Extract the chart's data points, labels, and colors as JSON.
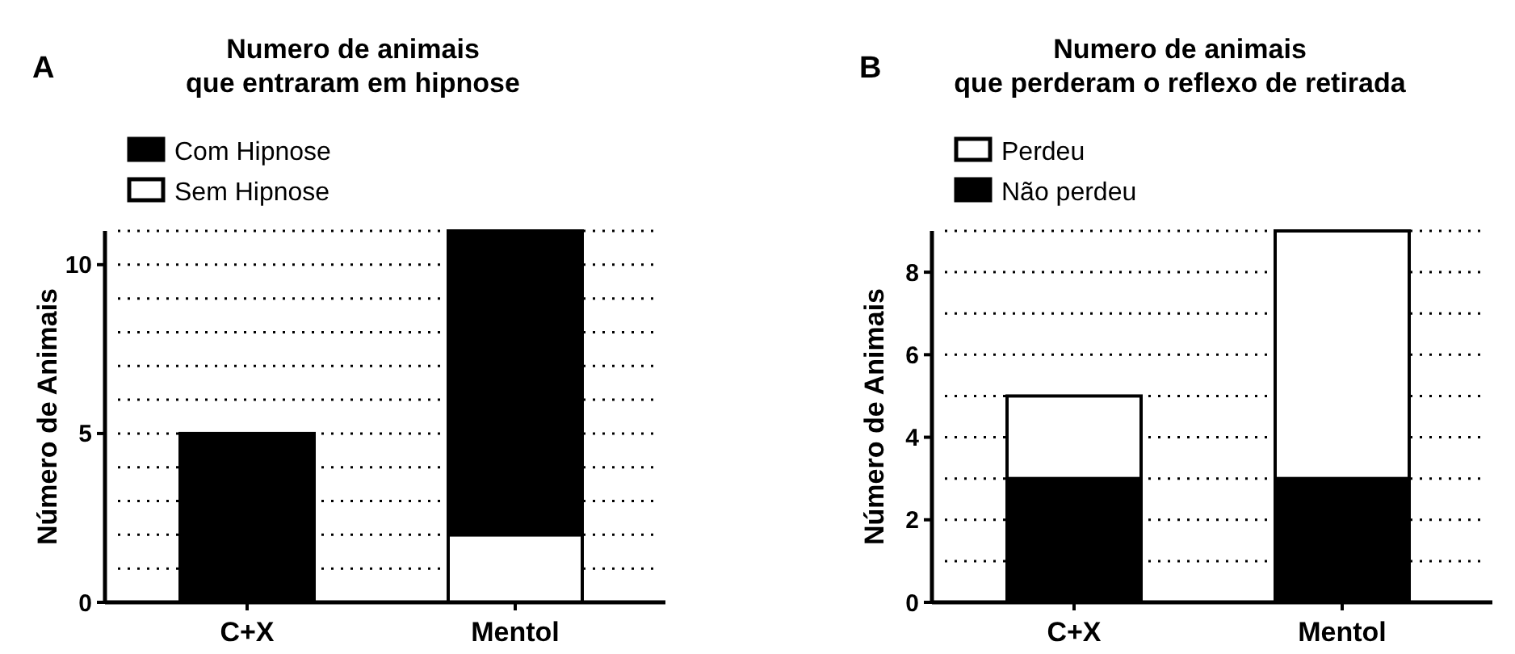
{
  "chart_data": [
    {
      "type": "bar",
      "title": "Numero de animais\nque entraram em hipnose",
      "ylabel": "Número de Animais",
      "annotations": [
        "A"
      ],
      "categories": [
        "C+X",
        "Mentol"
      ],
      "stacked": true,
      "legend": "top",
      "grid": "y",
      "ylim": [
        0,
        11
      ],
      "yticks": [
        0,
        {
          "value": 1,
          "label": null
        },
        {
          "value": 2,
          "label": null
        },
        {
          "value": 3,
          "label": null
        },
        {
          "value": 4,
          "label": null
        },
        5,
        {
          "value": 6,
          "label": null
        },
        {
          "value": 7,
          "label": null
        },
        {
          "value": 8,
          "label": null
        },
        {
          "value": 9,
          "label": null
        },
        10,
        {
          "value": 11,
          "label": null
        }
      ],
      "series": [
        {
          "name": "Sem Hipnose",
          "color": "#ffffff",
          "values": [
            0,
            2
          ]
        },
        {
          "name": "Com Hipnose",
          "color": "#000000",
          "values": [
            5,
            9
          ]
        }
      ]
    },
    {
      "type": "bar",
      "title": "Numero de animais\nque perderam o reflexo de retirada",
      "ylabel": "Número de Animais",
      "annotations": [
        "B"
      ],
      "categories": [
        "C+X",
        "Mentol"
      ],
      "stacked": true,
      "legend": "top",
      "grid": "y",
      "ylim": [
        0,
        9
      ],
      "yticks": [
        0,
        {
          "value": 1,
          "label": null
        },
        2,
        {
          "value": 3,
          "label": null
        },
        4,
        {
          "value": 5,
          "label": null
        },
        6,
        {
          "value": 7,
          "label": null
        },
        8,
        {
          "value": 9,
          "label": null
        }
      ],
      "series": [
        {
          "name": "Não perdeu",
          "color": "#000000",
          "values": [
            3,
            3
          ]
        },
        {
          "name": "Perdeu",
          "color": "#ffffff",
          "values": [
            2,
            6
          ]
        }
      ]
    }
  ]
}
